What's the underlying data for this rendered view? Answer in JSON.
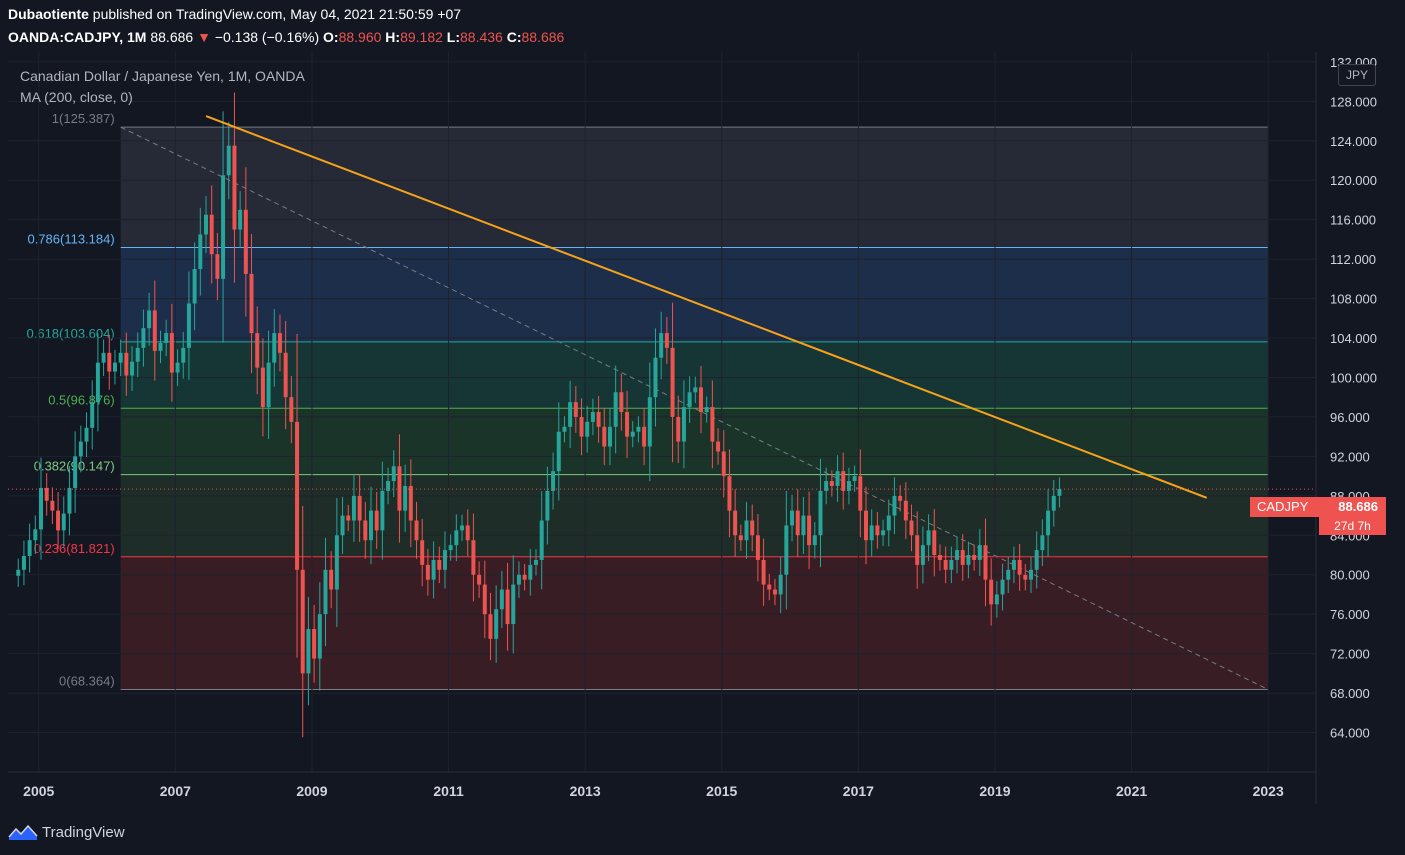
{
  "header": {
    "author": "Dubaotiente",
    "published": "published on TradingView.com, May 04, 2021 21:50:59 +07",
    "symbol": "OANDA:CADJPY, 1M",
    "last": "88.686",
    "arrow": "▼",
    "change": "−0.138 (−0.16%)",
    "o_label": "O:",
    "o_val": "88.960",
    "h_label": "H:",
    "h_val": "89.182",
    "l_label": "L:",
    "l_val": "88.436",
    "c_label": "C:",
    "c_val": "88.686"
  },
  "legend": {
    "title": "Canadian Dollar / Japanese Yen, 1M, OANDA",
    "indicator": "MA (200, close, 0)"
  },
  "currency_badge": "JPY",
  "price_tag": {
    "symbol": "CADJPY",
    "value": "88.686",
    "countdown": "27d 7h"
  },
  "footer": {
    "brand": "TradingView"
  },
  "colors": {
    "up": "#26a69a",
    "down": "#ef5350",
    "trendline": "#f7a21b",
    "bg": "#131722",
    "axis_text": "#d1d4dc"
  },
  "chart_data": {
    "type": "candlestick",
    "title": "Canadian Dollar / Japanese Yen, 1M, OANDA",
    "y_axis_ticks": [
      "132.000",
      "128.000",
      "124.000",
      "120.000",
      "116.000",
      "112.000",
      "108.000",
      "104.000",
      "100.000",
      "96.000",
      "92.000",
      "88.000",
      "84.000",
      "80.000",
      "76.000",
      "72.000",
      "68.000",
      "64.000"
    ],
    "y_tick_values": [
      132,
      128,
      124,
      120,
      116,
      112,
      108,
      104,
      100,
      96,
      92,
      88,
      84,
      80,
      76,
      72,
      68,
      64
    ],
    "x_axis_ticks": [
      "2005",
      "2007",
      "2009",
      "2011",
      "2013",
      "2015",
      "2017",
      "2019",
      "2021",
      "2023"
    ],
    "x_tick_years": [
      2005,
      2007,
      2009,
      2011,
      2013,
      2015,
      2017,
      2019,
      2021,
      2023
    ],
    "ylim": [
      60,
      133
    ],
    "xlim": [
      2004.55,
      2023.7
    ],
    "fib_x_range": [
      2006.2,
      2023.0
    ],
    "fib_levels": [
      {
        "label": "1(125.387)",
        "ratio": 1,
        "value": 125.387,
        "color": "#787b86",
        "fill": "#2a2e39"
      },
      {
        "label": "0.786(113.184)",
        "ratio": 0.786,
        "value": 113.184,
        "color": "#64b5f6",
        "fill": "#2a2e39"
      },
      {
        "label": "0.618(103.604)",
        "ratio": 0.618,
        "value": 103.604,
        "color": "#26a69a",
        "fill": "#1e3350"
      },
      {
        "label": "0.5(96.876)",
        "ratio": 0.5,
        "value": 96.876,
        "color": "#4caf50",
        "fill": "#173c3a"
      },
      {
        "label": "0.382(90.147)",
        "ratio": 0.382,
        "value": 90.147,
        "color": "#81c784",
        "fill": "#1c3a2c"
      },
      {
        "label": "0.236(81.821)",
        "ratio": 0.236,
        "value": 81.821,
        "color": "#f23645",
        "fill": "#213128"
      },
      {
        "label": "0(68.364)",
        "ratio": 0,
        "value": 68.364,
        "color": "#787b86",
        "fill": "#3f2025"
      }
    ],
    "trendline": {
      "start": [
        2007.45,
        126.5
      ],
      "end": [
        2022.1,
        87.8
      ]
    },
    "diagonal_dashed": {
      "start": [
        2006.2,
        125.387
      ],
      "end": [
        2023.0,
        68.364
      ]
    },
    "last_price": 88.686,
    "series": [
      {
        "name": "CADJPY",
        "ohlc_note": "monthly closes (approximate)",
        "start": 2004.7,
        "step": 0.0833,
        "values": [
          80.5,
          81.9,
          83.5,
          84.6,
          88.8,
          87.5,
          86.5,
          84.5,
          86.2,
          88.8,
          92.0,
          93.5,
          94.9,
          97.5,
          101.5,
          102.5,
          100.6,
          101.5,
          102.5,
          100.2,
          101.6,
          103.0,
          105.0,
          106.8,
          102.7,
          103.5,
          104.5,
          100.5,
          101.5,
          103.0,
          107.5,
          111.0,
          114.5,
          116.5,
          112.5,
          110.0,
          120.5,
          123.5,
          115.0,
          117.0,
          110.5,
          104.5,
          101.0,
          97.0,
          101.5,
          104.5,
          102.5,
          98.0,
          95.5,
          80.5,
          70.0,
          74.5,
          71.5,
          76.0,
          80.5,
          78.5,
          84.0,
          86.0,
          85.5,
          88.0,
          85.5,
          83.5,
          86.5,
          84.5,
          88.5,
          89.5,
          91.0,
          86.5,
          89.0,
          85.5,
          83.5,
          81.0,
          79.5,
          81.5,
          80.5,
          82.5,
          83.0,
          84.5,
          85.0,
          83.5,
          80.0,
          79.0,
          76.0,
          73.5,
          76.5,
          78.5,
          75.0,
          79.0,
          80.0,
          79.5,
          81.0,
          81.5,
          85.5,
          88.5,
          90.5,
          94.5,
          95.0,
          97.5,
          96.0,
          94.0,
          95.5,
          96.5,
          95.0,
          93.0,
          95.0,
          98.5,
          96.5,
          94.0,
          94.5,
          95.0,
          93.0,
          98.0,
          102.0,
          104.5,
          103.0,
          96.0,
          93.5,
          97.0,
          98.5,
          99.0,
          96.5,
          97.0,
          93.5,
          92.5,
          90.0,
          86.5,
          84.0,
          83.5,
          85.5,
          84.0,
          81.5,
          79.0,
          78.5,
          78.0,
          80.0,
          85.0,
          86.5,
          84.0,
          86.0,
          83.0,
          84.0,
          88.5,
          89.5,
          89.0,
          90.5,
          88.5,
          89.5,
          90.0,
          86.5,
          83.5,
          85.0,
          84.0,
          84.5,
          86.0,
          88.0,
          87.5,
          85.5,
          84.0,
          81.0,
          83.0,
          84.5,
          82.0,
          81.5,
          80.5,
          81.5,
          82.5,
          81.0,
          82.0,
          81.5,
          83.0,
          79.5,
          77.0,
          78.0,
          79.5,
          80.5,
          81.5,
          80.0,
          79.5,
          80.5,
          82.5,
          84.0,
          86.5,
          88.0,
          88.686
        ]
      }
    ]
  }
}
